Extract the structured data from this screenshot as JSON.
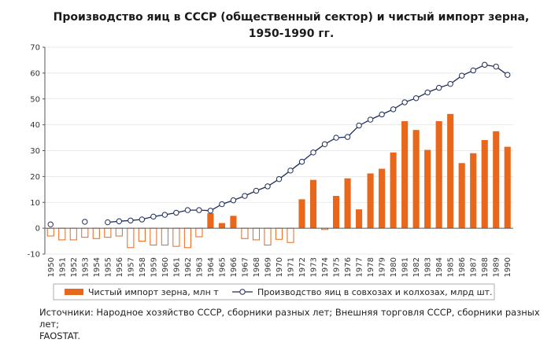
{
  "chart_data": {
    "type": "bar+line",
    "title_line1": "Производство яиц в СССР (общественный сектор) и чистый импорт зерна,",
    "title_line2": "1950-1990 гг.",
    "categories": [
      "1950",
      "1951",
      "1952",
      "1953",
      "1954",
      "1955",
      "1956",
      "1957",
      "1958",
      "1959",
      "1960",
      "1961",
      "1962",
      "1963",
      "1964",
      "1965",
      "1966",
      "1967",
      "1968",
      "1969",
      "1970",
      "1971",
      "1972",
      "1973",
      "1974",
      "1975",
      "1976",
      "1977",
      "1978",
      "1979",
      "1980",
      "1981",
      "1982",
      "1983",
      "1984",
      "1985",
      "1986",
      "1987",
      "1988",
      "1989",
      "1990"
    ],
    "yticks": [
      "70",
      "60",
      "50",
      "40",
      "30",
      "20",
      "10",
      "0",
      "-10"
    ],
    "ylim": [
      -10,
      70
    ],
    "series": [
      {
        "name": "Чистый импорт зерна, млн т",
        "kind": "bar",
        "color": "#e8671b",
        "values": [
          -3,
          -4.5,
          -4.5,
          -3.5,
          -4,
          -3.5,
          -3,
          -7.5,
          -5,
          -6.5,
          -6.5,
          -7,
          -7.5,
          -3.3,
          5.8,
          2,
          4.8,
          -4,
          -4.5,
          -6.5,
          -4.3,
          -5.5,
          11.2,
          18.7,
          -0.5,
          12.5,
          19.3,
          7.3,
          21.2,
          23,
          29.3,
          41.4,
          38,
          30.3,
          41.4,
          44.2,
          25.2,
          29,
          34.1,
          37.5,
          31.5
        ]
      },
      {
        "name": "Производство яиц в совхозах и колхозах, млрд шт.",
        "kind": "line",
        "color": "#1f2d5c",
        "values": [
          1.5,
          null,
          null,
          2.5,
          null,
          2.3,
          2.7,
          3,
          3.4,
          4.5,
          5.2,
          6,
          7,
          7,
          6.8,
          9.3,
          10.8,
          12.5,
          14.5,
          16.2,
          19,
          22.3,
          25.7,
          29.3,
          32.5,
          35,
          35.3,
          39.7,
          42,
          44,
          46,
          48.7,
          50.3,
          52.5,
          54.3,
          55.8,
          59,
          61,
          63.2,
          62.5,
          59.3
        ]
      }
    ],
    "legend": [
      "Чистый импорт зерна, млн т",
      "Производство яиц в совхозах и колхозах, млрд шт."
    ]
  },
  "source": {
    "line1": "Источники: Народное хозяйство СССР, сборники разных лет; Внешняя торговля СССР, сборники разных лет;",
    "line2": "FAOSTAT."
  }
}
